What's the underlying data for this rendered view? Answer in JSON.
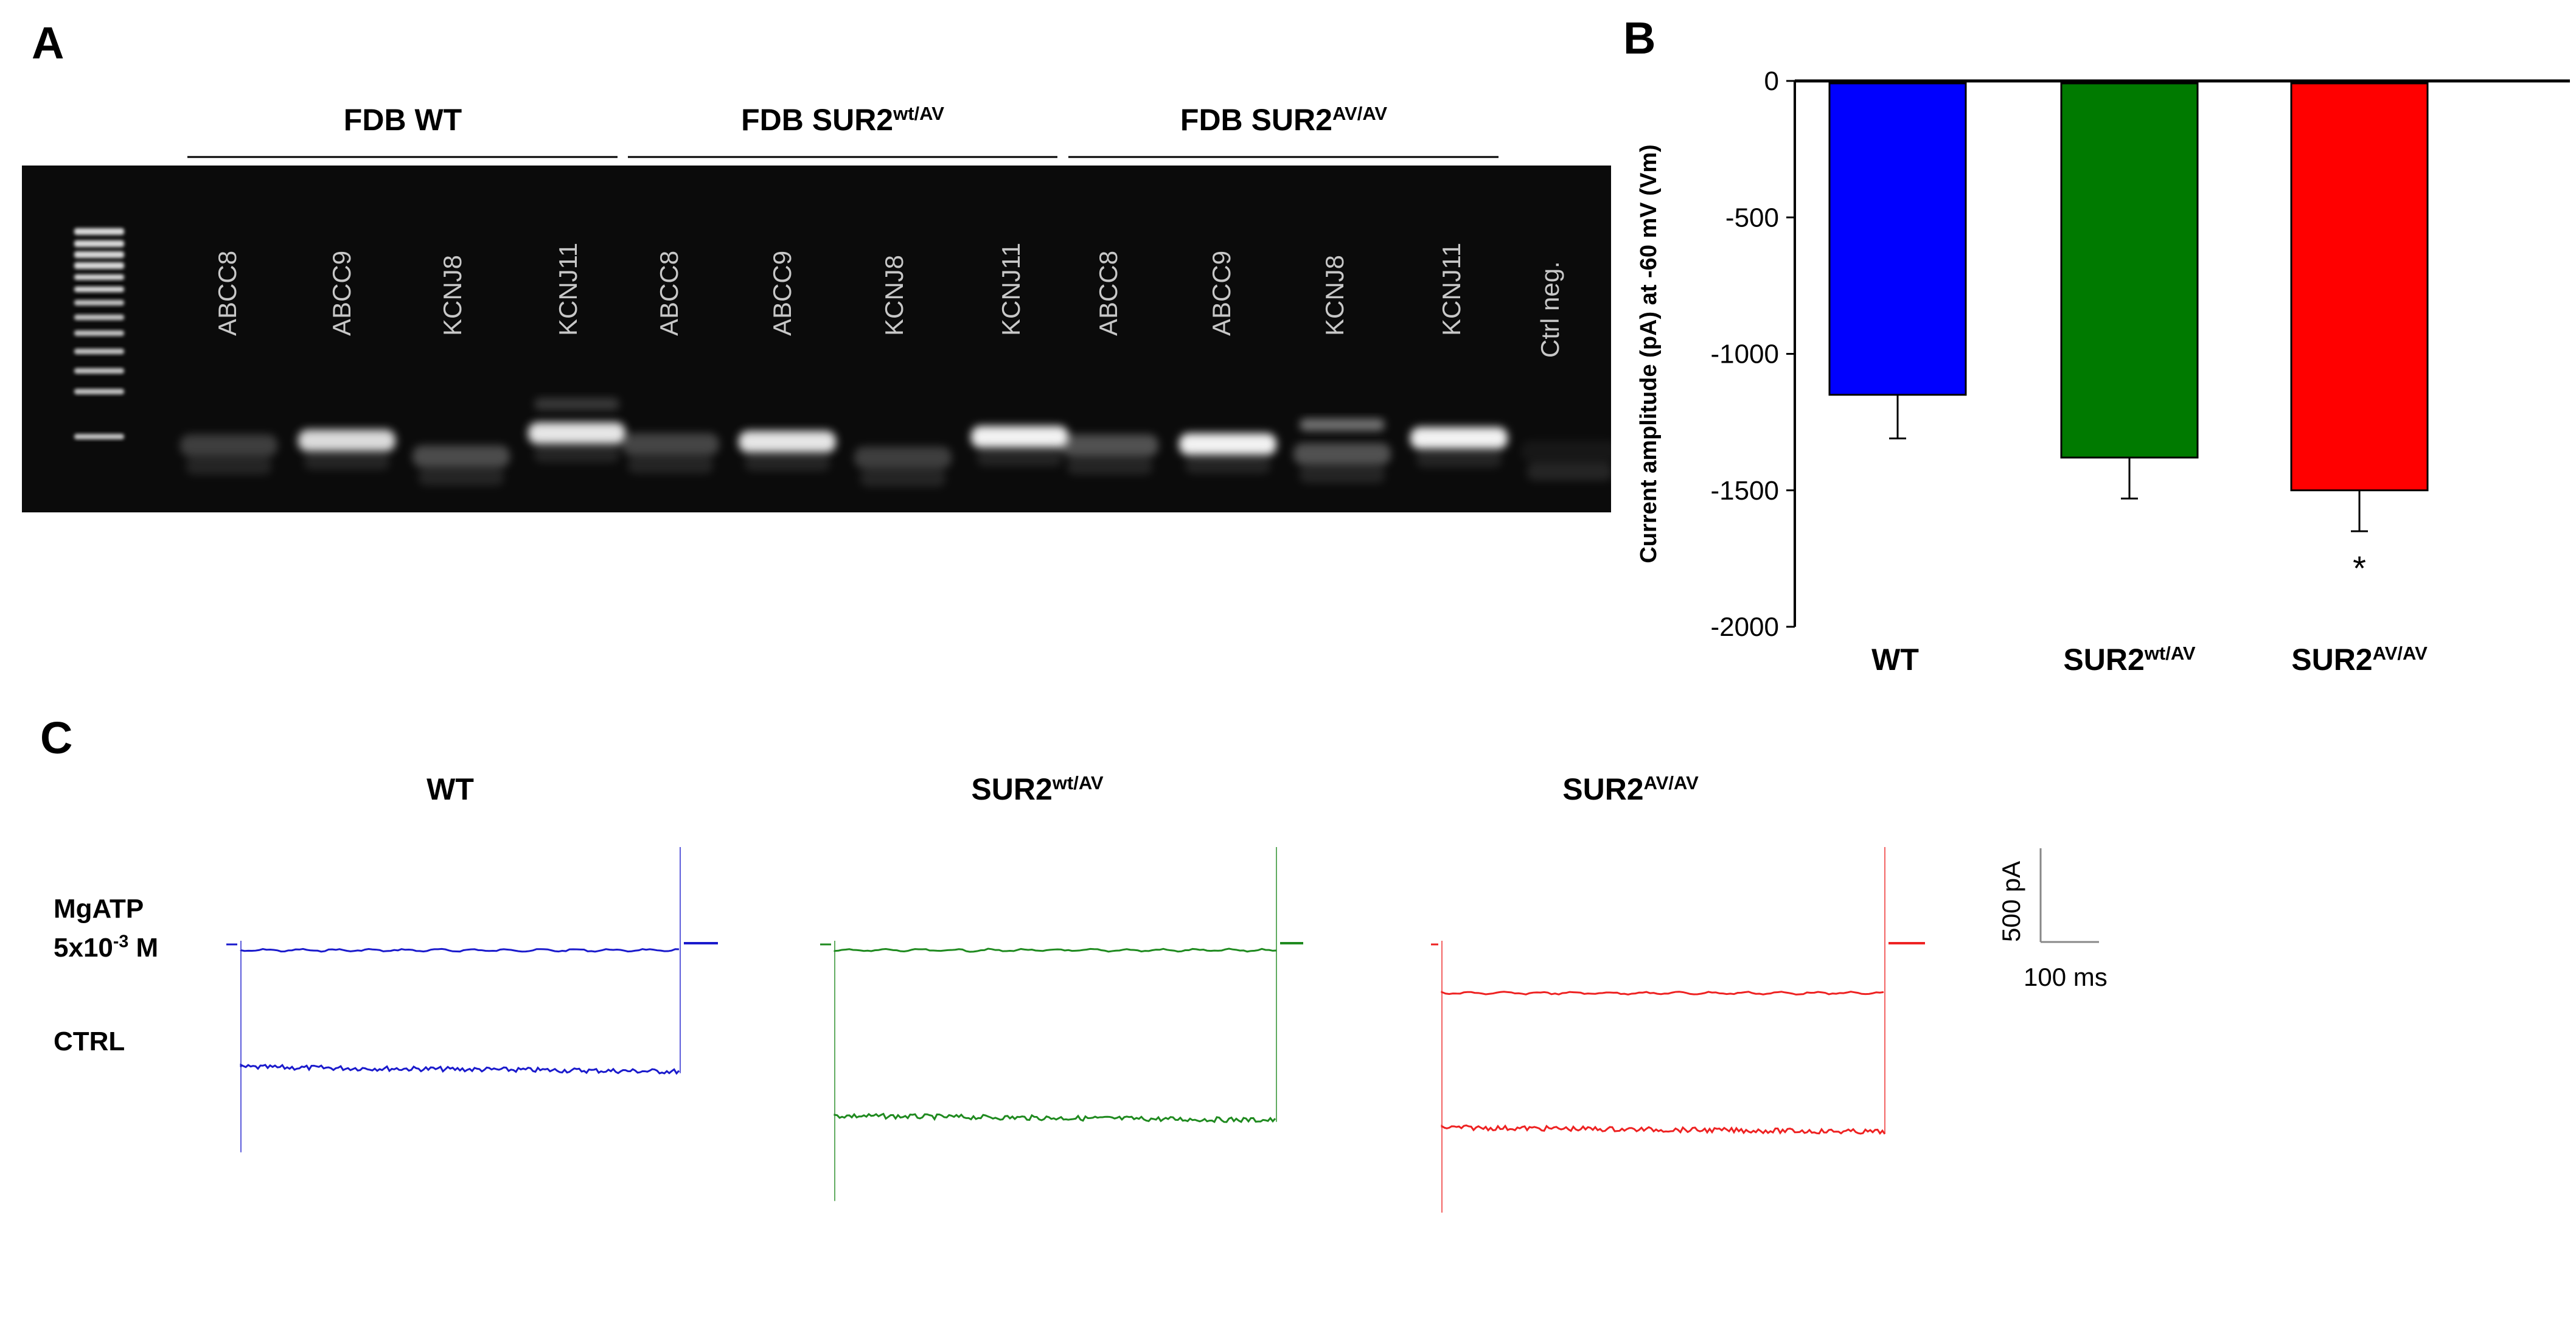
{
  "panel_a": {
    "letter": "A",
    "groups": [
      {
        "prefix": "FDB ",
        "base": "WT",
        "sup": ""
      },
      {
        "prefix": "FDB ",
        "base": "SUR2",
        "sup": "wt/AV"
      },
      {
        "prefix": "FDB ",
        "base": "SUR2",
        "sup": "AV/AV"
      }
    ],
    "lanes": [
      "ABCC8",
      "ABCC9",
      "KCNJ8",
      "KCNJ11",
      "ABCC8",
      "ABCC9",
      "KCNJ8",
      "KCNJ11",
      "ABCC8",
      "ABCC9",
      "KCNJ8",
      "KCNJ11",
      "Ctrl neg."
    ],
    "gel_colors": {
      "background": "#0b0b0b",
      "band": "#f2f2f2"
    }
  },
  "panel_b": {
    "letter": "B",
    "categories": [
      {
        "base": "WT",
        "sup": ""
      },
      {
        "base": "SUR2",
        "sup": "wt/AV"
      },
      {
        "base": "SUR2",
        "sup": "AV/AV"
      }
    ]
  },
  "chart_data": {
    "type": "bar",
    "categories": [
      "WT",
      "SUR2wt/AV",
      "SUR2AV/AV"
    ],
    "values": [
      -1150,
      -1380,
      -1500
    ],
    "errors": [
      160,
      150,
      150
    ],
    "colors": [
      "#0000ff",
      "#007a00",
      "#ff0000"
    ],
    "ylabel": "Current amplitude (pA) at -60 mV (Vm)",
    "ylim": [
      -2000,
      0
    ],
    "yticks": [
      0,
      -500,
      -1000,
      -1500,
      -2000
    ],
    "annotations": [
      {
        "category": "SUR2AV/AV",
        "text": "*"
      }
    ],
    "grid": false
  },
  "panel_c": {
    "letter": "C",
    "traces": [
      {
        "base": "WT",
        "sup": "",
        "color": "#1a1acc",
        "level_mgatp": -30,
        "level_ctrl": -630
      },
      {
        "base": "SUR2",
        "sup": "wt/AV",
        "color": "#1f8a1f",
        "level_mgatp": -30,
        "level_ctrl": -880
      },
      {
        "base": "SUR2",
        "sup": "AV/AV",
        "color": "#ee2222",
        "level_mgatp": -250,
        "level_ctrl": -940
      }
    ],
    "condition_labels": {
      "mgatp_line1": "MgATP",
      "mgatp_base": "5x10",
      "mgatp_exp": "-3",
      "mgatp_unit": " M",
      "ctrl": "CTRL"
    },
    "scale_bar": {
      "current": "500 pA",
      "time": "100 ms"
    }
  }
}
